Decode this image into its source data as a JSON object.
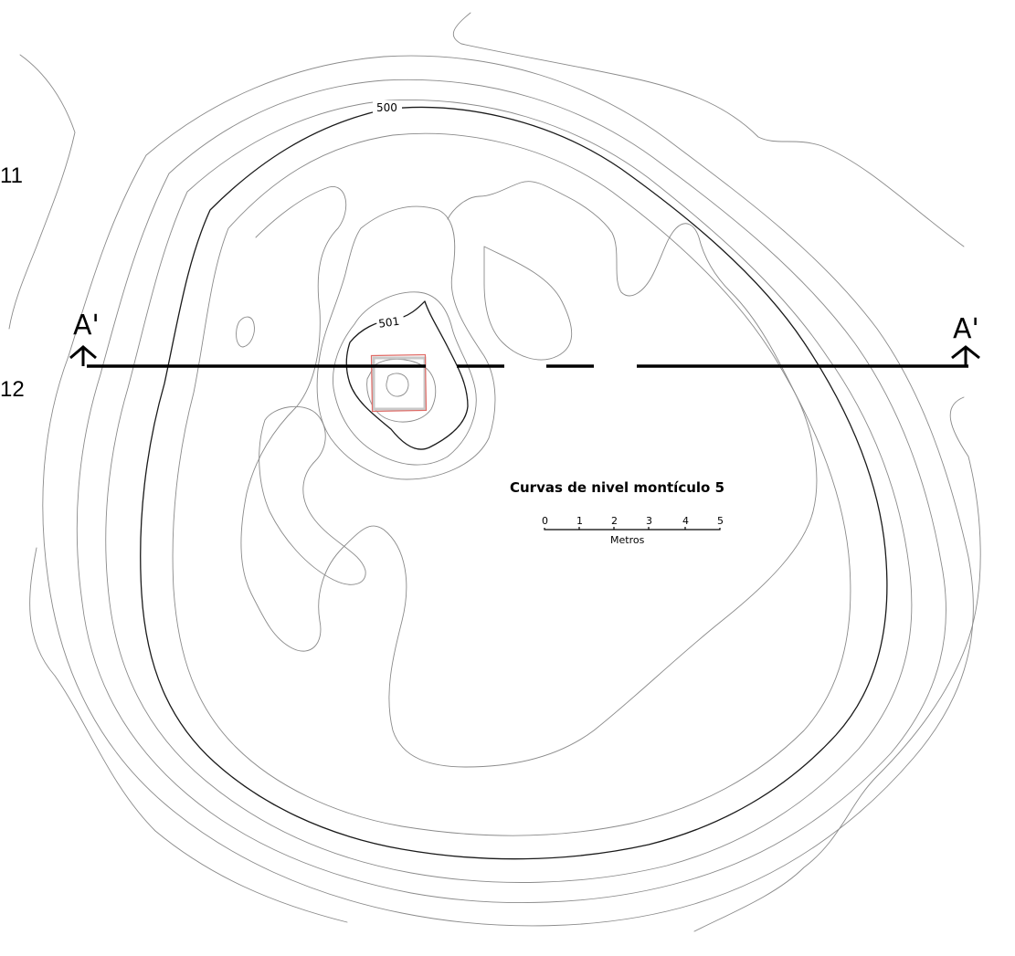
{
  "map": {
    "title": "Curvas de nivel montículo 5",
    "section_label_left": "A'",
    "section_label_right": "A'",
    "side_labels": [
      "11",
      "12"
    ],
    "contour_labels": [
      {
        "text": "500",
        "elevation": 500
      },
      {
        "text": "501",
        "elevation": 501
      }
    ],
    "scale_bar": {
      "ticks": [
        "0",
        "1",
        "2",
        "3",
        "4",
        "5"
      ],
      "unit": "Metros"
    },
    "colors": {
      "background": "#ffffff",
      "contour": "#8a8a8a",
      "index_contour": "#1a1a1a",
      "section_line": "#000000",
      "highlight_box": "#e06b66"
    }
  }
}
